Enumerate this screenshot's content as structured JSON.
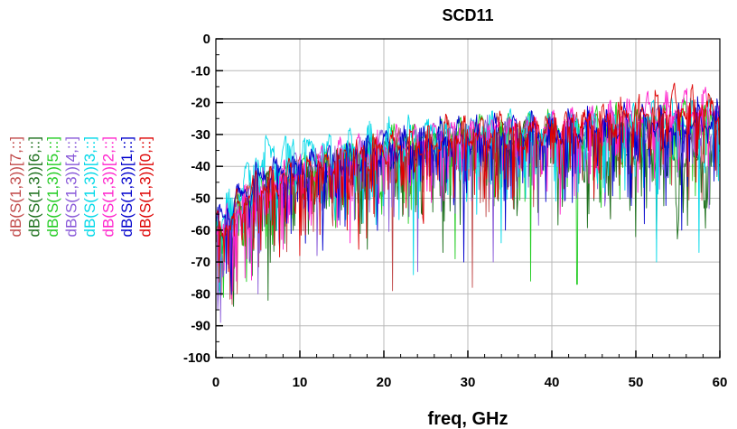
{
  "chart_data": {
    "type": "line",
    "title": "SCD11",
    "xlabel": "freq, GHz",
    "ylabel": "",
    "xlim": [
      0,
      60
    ],
    "ylim": [
      -100,
      0
    ],
    "x_ticks": [
      0,
      10,
      20,
      30,
      40,
      50,
      60
    ],
    "y_ticks": [
      0,
      -10,
      -20,
      -30,
      -40,
      -50,
      -60,
      -70,
      -80,
      -90,
      -100
    ],
    "x_tick_labels": [
      "0",
      "10",
      "20",
      "30",
      "40",
      "50",
      "60"
    ],
    "y_tick_labels": [
      "0",
      "-10",
      "-20",
      "-30",
      "-40",
      "-50",
      "-60",
      "-70",
      "-80",
      "-90",
      "-100"
    ],
    "grid": true,
    "legend_position": "left, rotated vertical",
    "series": [
      {
        "name": "dB(S(1,3))[7,::]",
        "color": "#c04848",
        "x": [
          0.5,
          5,
          10,
          15,
          20,
          25,
          30,
          35,
          40,
          45,
          50,
          55,
          60
        ],
        "y": [
          -62,
          -45,
          -40,
          -36,
          -33,
          -31,
          -29,
          -28,
          -27,
          -27,
          -27,
          -26,
          -28
        ],
        "dips": [
          [
            2.5,
            -80
          ],
          [
            21,
            -79
          ],
          [
            30.5,
            -78
          ],
          [
            48,
            -46
          ]
        ]
      },
      {
        "name": "dB(S(1,3))[6,::]",
        "color": "#1a6e1a",
        "x": [
          0.5,
          5,
          10,
          15,
          20,
          25,
          30,
          35,
          40,
          45,
          50,
          55,
          60
        ],
        "y": [
          -60,
          -46,
          -42,
          -38,
          -35,
          -33,
          -31,
          -30,
          -30,
          -31,
          -32,
          -34,
          -35
        ],
        "dips": [
          [
            6.2,
            -82
          ],
          [
            18,
            -66
          ],
          [
            27,
            -67
          ],
          [
            59,
            -40
          ]
        ]
      },
      {
        "name": "dB(S(1,3))[5,::]",
        "color": "#22cc22",
        "x": [
          0.5,
          5,
          10,
          15,
          20,
          25,
          30,
          35,
          40,
          45,
          50,
          55,
          60
        ],
        "y": [
          -58,
          -45,
          -40,
          -36,
          -32,
          -30,
          -28,
          -27,
          -27,
          -26,
          -25,
          -24,
          -24
        ],
        "dips": [
          [
            0.4,
            -79
          ],
          [
            37.5,
            -76
          ],
          [
            43,
            -77
          ],
          [
            28.5,
            -69
          ]
        ]
      },
      {
        "name": "dB(S(1,3))[4,::]",
        "color": "#8858d8",
        "x": [
          0.5,
          5,
          10,
          15,
          20,
          25,
          30,
          35,
          40,
          45,
          50,
          55,
          60
        ],
        "y": [
          -60,
          -44,
          -39,
          -36,
          -33,
          -31,
          -29,
          -28,
          -27,
          -26,
          -26,
          -25,
          -25
        ],
        "dips": [
          [
            5,
            -80
          ],
          [
            12,
            -68
          ],
          [
            24,
            -73
          ],
          [
            33,
            -70
          ]
        ]
      },
      {
        "name": "dB(S(1,3))[3,::]",
        "color": "#00d8e8",
        "x": [
          0.5,
          5,
          10,
          15,
          20,
          25,
          30,
          35,
          40,
          45,
          50,
          55,
          60
        ],
        "y": [
          -54,
          -35,
          -33,
          -32,
          -30,
          -28,
          -27,
          -26,
          -26,
          -25,
          -24,
          -23,
          -22
        ],
        "dips": [
          [
            23.5,
            -74
          ],
          [
            34,
            -64
          ],
          [
            52.5,
            -70
          ],
          [
            57.5,
            -67
          ]
        ]
      },
      {
        "name": "dB(S(1,3))[2,::]",
        "color": "#ff22cc",
        "x": [
          0.5,
          5,
          10,
          15,
          20,
          25,
          30,
          35,
          40,
          45,
          50,
          55,
          60
        ],
        "y": [
          -58,
          -45,
          -40,
          -36,
          -33,
          -30,
          -28,
          -27,
          -26,
          -24,
          -22,
          -20,
          -19
        ],
        "dips": [
          [
            3.5,
            -75
          ],
          [
            8,
            -66
          ],
          [
            16,
            -64
          ],
          [
            41,
            -55
          ]
        ]
      },
      {
        "name": "dB(S(1,3))[1,::]",
        "color": "#0000cc",
        "x": [
          0.5,
          5,
          10,
          15,
          20,
          25,
          30,
          35,
          40,
          45,
          50,
          55,
          60
        ],
        "y": [
          -55,
          -42,
          -38,
          -35,
          -32,
          -30,
          -29,
          -28,
          -27,
          -26,
          -25,
          -24,
          -23
        ],
        "dips": [
          [
            34.5,
            -60
          ],
          [
            29.5,
            -70
          ],
          [
            51,
            -58
          ],
          [
            55.5,
            -60
          ]
        ]
      },
      {
        "name": "dB(S(1,3))[0,::]",
        "color": "#dd0000",
        "x": [
          0.5,
          5,
          10,
          15,
          20,
          25,
          30,
          35,
          40,
          45,
          50,
          55,
          60
        ],
        "y": [
          -58,
          -44,
          -40,
          -36,
          -33,
          -30,
          -28,
          -27,
          -26,
          -24,
          -21,
          -19,
          -20
        ],
        "dips": [
          [
            1.5,
            -73
          ],
          [
            10,
            -68
          ],
          [
            17,
            -66
          ],
          [
            45,
            -50
          ]
        ]
      }
    ]
  }
}
